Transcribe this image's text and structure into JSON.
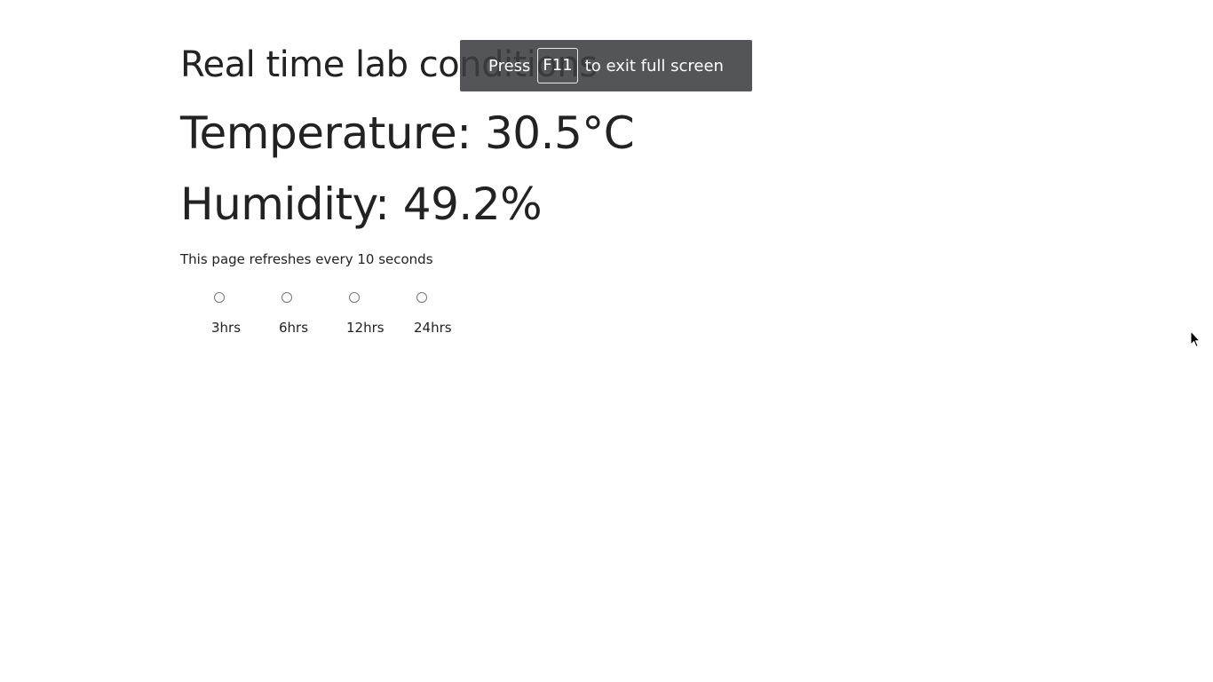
{
  "page": {
    "title": "Real time lab conditions"
  },
  "readings": {
    "temperature": "Temperature: 30.5°C",
    "humidity": "Humidity: 49.2%"
  },
  "refresh_note": "This page refreshes every 10 seconds",
  "time_range": {
    "options": [
      {
        "label": "3hrs",
        "selected": false
      },
      {
        "label": "6hrs",
        "selected": false
      },
      {
        "label": "12hrs",
        "selected": false
      },
      {
        "label": "24hrs",
        "selected": false
      }
    ]
  },
  "fullscreen_toast": {
    "prefix": "Press",
    "key": "F11",
    "suffix": "to exit full screen"
  },
  "cursor_icon": "arrow-cursor-icon"
}
